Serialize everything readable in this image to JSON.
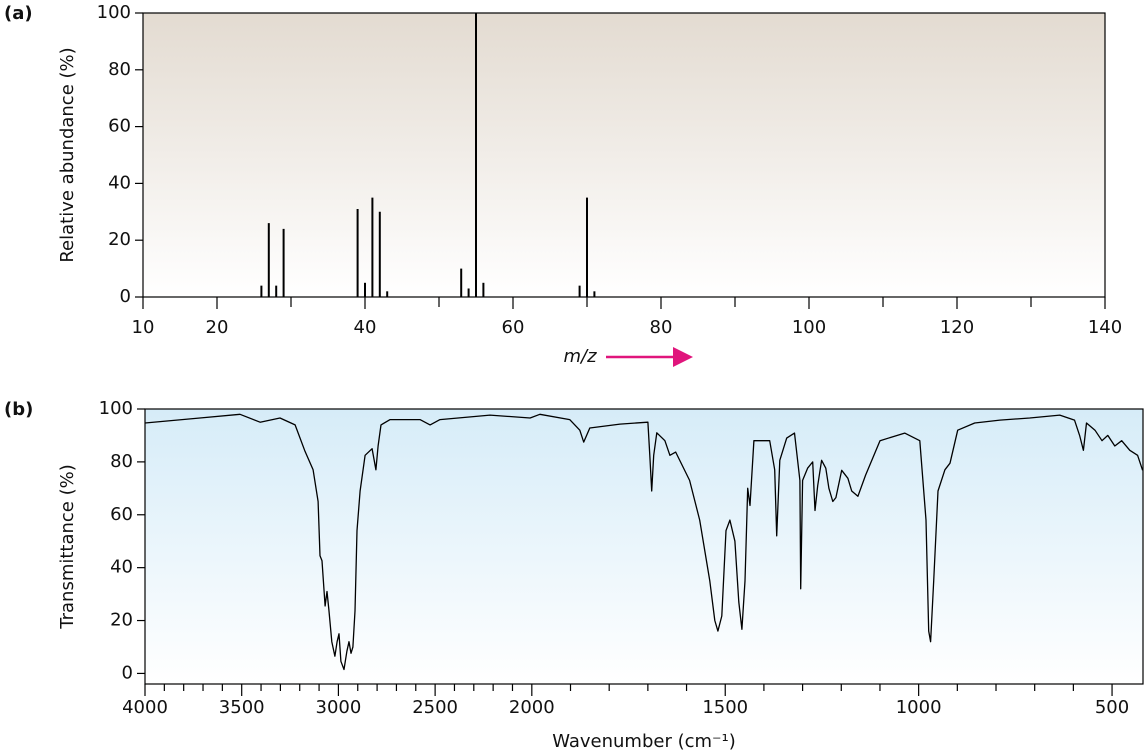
{
  "chart_data": [
    {
      "type": "bar",
      "label": "(a)",
      "xlabel": "m/z",
      "ylabel": "Relative abundance (%)",
      "color": "#000000",
      "x": [
        26,
        27,
        28,
        29,
        39,
        40,
        41,
        42,
        43,
        53,
        54,
        55,
        56,
        69,
        70,
        71
      ],
      "values": [
        4,
        26,
        4,
        24,
        31,
        5,
        35,
        30,
        2,
        10,
        3,
        100,
        5,
        4,
        35,
        2
      ],
      "xlim": [
        10,
        140
      ],
      "xticks": [
        10,
        20,
        40,
        60,
        80,
        100,
        120,
        140
      ],
      "xminorticks": [
        30,
        50,
        70,
        90,
        110,
        130
      ],
      "ylim": [
        0,
        100
      ],
      "yticks": [
        0,
        20,
        40,
        60,
        80,
        100
      ]
    },
    {
      "type": "line",
      "label": "(b)",
      "xlabel": "Wavenumber (cm⁻¹)",
      "ylabel": "Transmittance (%)",
      "color": "#000000",
      "x_scale_break": 2000,
      "x_scale_ratio": 2,
      "x": [
        4000,
        3716,
        3509,
        3405,
        3302,
        3224,
        3173,
        3131,
        3105,
        3095,
        3085,
        3069,
        3059,
        3049,
        3034,
        3018,
        3007,
        2997,
        2987,
        2971,
        2956,
        2945,
        2935,
        2925,
        2914,
        2904,
        2888,
        2862,
        2826,
        2806,
        2795,
        2780,
        2733,
        2578,
        2526,
        2475,
        2216,
        2009,
        1979,
        1902,
        1876,
        1866,
        1850,
        1772,
        1700,
        1695,
        1690,
        1685,
        1677,
        1656,
        1643,
        1628,
        1592,
        1566,
        1540,
        1527,
        1519,
        1509,
        1498,
        1488,
        1475,
        1465,
        1457,
        1449,
        1442,
        1436,
        1426,
        1385,
        1372,
        1367,
        1359,
        1341,
        1321,
        1307,
        1305,
        1300,
        1287,
        1274,
        1268,
        1261,
        1251,
        1240,
        1232,
        1222,
        1214,
        1199,
        1183,
        1173,
        1157,
        1137,
        1100,
        1036,
        997,
        981,
        974,
        969,
        961,
        950,
        932,
        919,
        899,
        855,
        790,
        713,
        635,
        597,
        584,
        574,
        566,
        544,
        526,
        511,
        493,
        475,
        454,
        434,
        421
      ],
      "values": [
        94.7,
        96.6,
        98,
        95,
        96.6,
        94,
        84,
        77,
        65,
        44.5,
        42.6,
        25.5,
        31,
        24,
        12,
        6.5,
        12,
        15,
        4.6,
        1.5,
        8.4,
        12,
        7.6,
        10,
        23.6,
        54,
        69,
        82.5,
        85,
        77,
        86,
        94,
        96,
        96,
        94,
        96,
        97.7,
        96.6,
        98,
        96,
        92,
        87.5,
        92.8,
        94.3,
        95,
        82.5,
        69,
        82.5,
        91,
        88,
        82.5,
        83.7,
        73,
        58,
        35,
        20,
        16,
        21.7,
        54,
        58,
        50,
        27,
        16.7,
        35,
        70,
        63.5,
        88,
        88,
        77,
        52,
        80.6,
        89,
        90.9,
        73,
        32,
        73,
        77.6,
        80,
        61.6,
        71,
        80.6,
        77.6,
        70,
        65,
        66.5,
        76.8,
        73.8,
        69,
        67,
        75,
        88,
        90.9,
        88,
        58,
        16,
        12,
        35,
        69,
        77,
        79.5,
        92,
        94.7,
        95.8,
        96.6,
        97.7,
        95.8,
        90,
        84.4,
        94.7,
        92,
        88,
        90,
        86,
        88,
        84.4,
        82.5,
        76.8
      ],
      "xlim": [
        4000,
        420
      ],
      "xticks": [
        4000,
        3500,
        3000,
        2500,
        2000,
        1500,
        1000,
        500
      ],
      "xminorticks": [
        3900,
        3800,
        3700,
        3600,
        3400,
        3300,
        3200,
        3100,
        2900,
        2800,
        2700,
        2600,
        2400,
        2300,
        2200,
        2100,
        1900,
        1800,
        1700,
        1600,
        1400,
        1300,
        1200,
        1100,
        900,
        800,
        700,
        600
      ],
      "ylim": [
        -4,
        100
      ],
      "yticks": [
        0,
        20,
        40,
        60,
        80,
        100
      ]
    }
  ]
}
